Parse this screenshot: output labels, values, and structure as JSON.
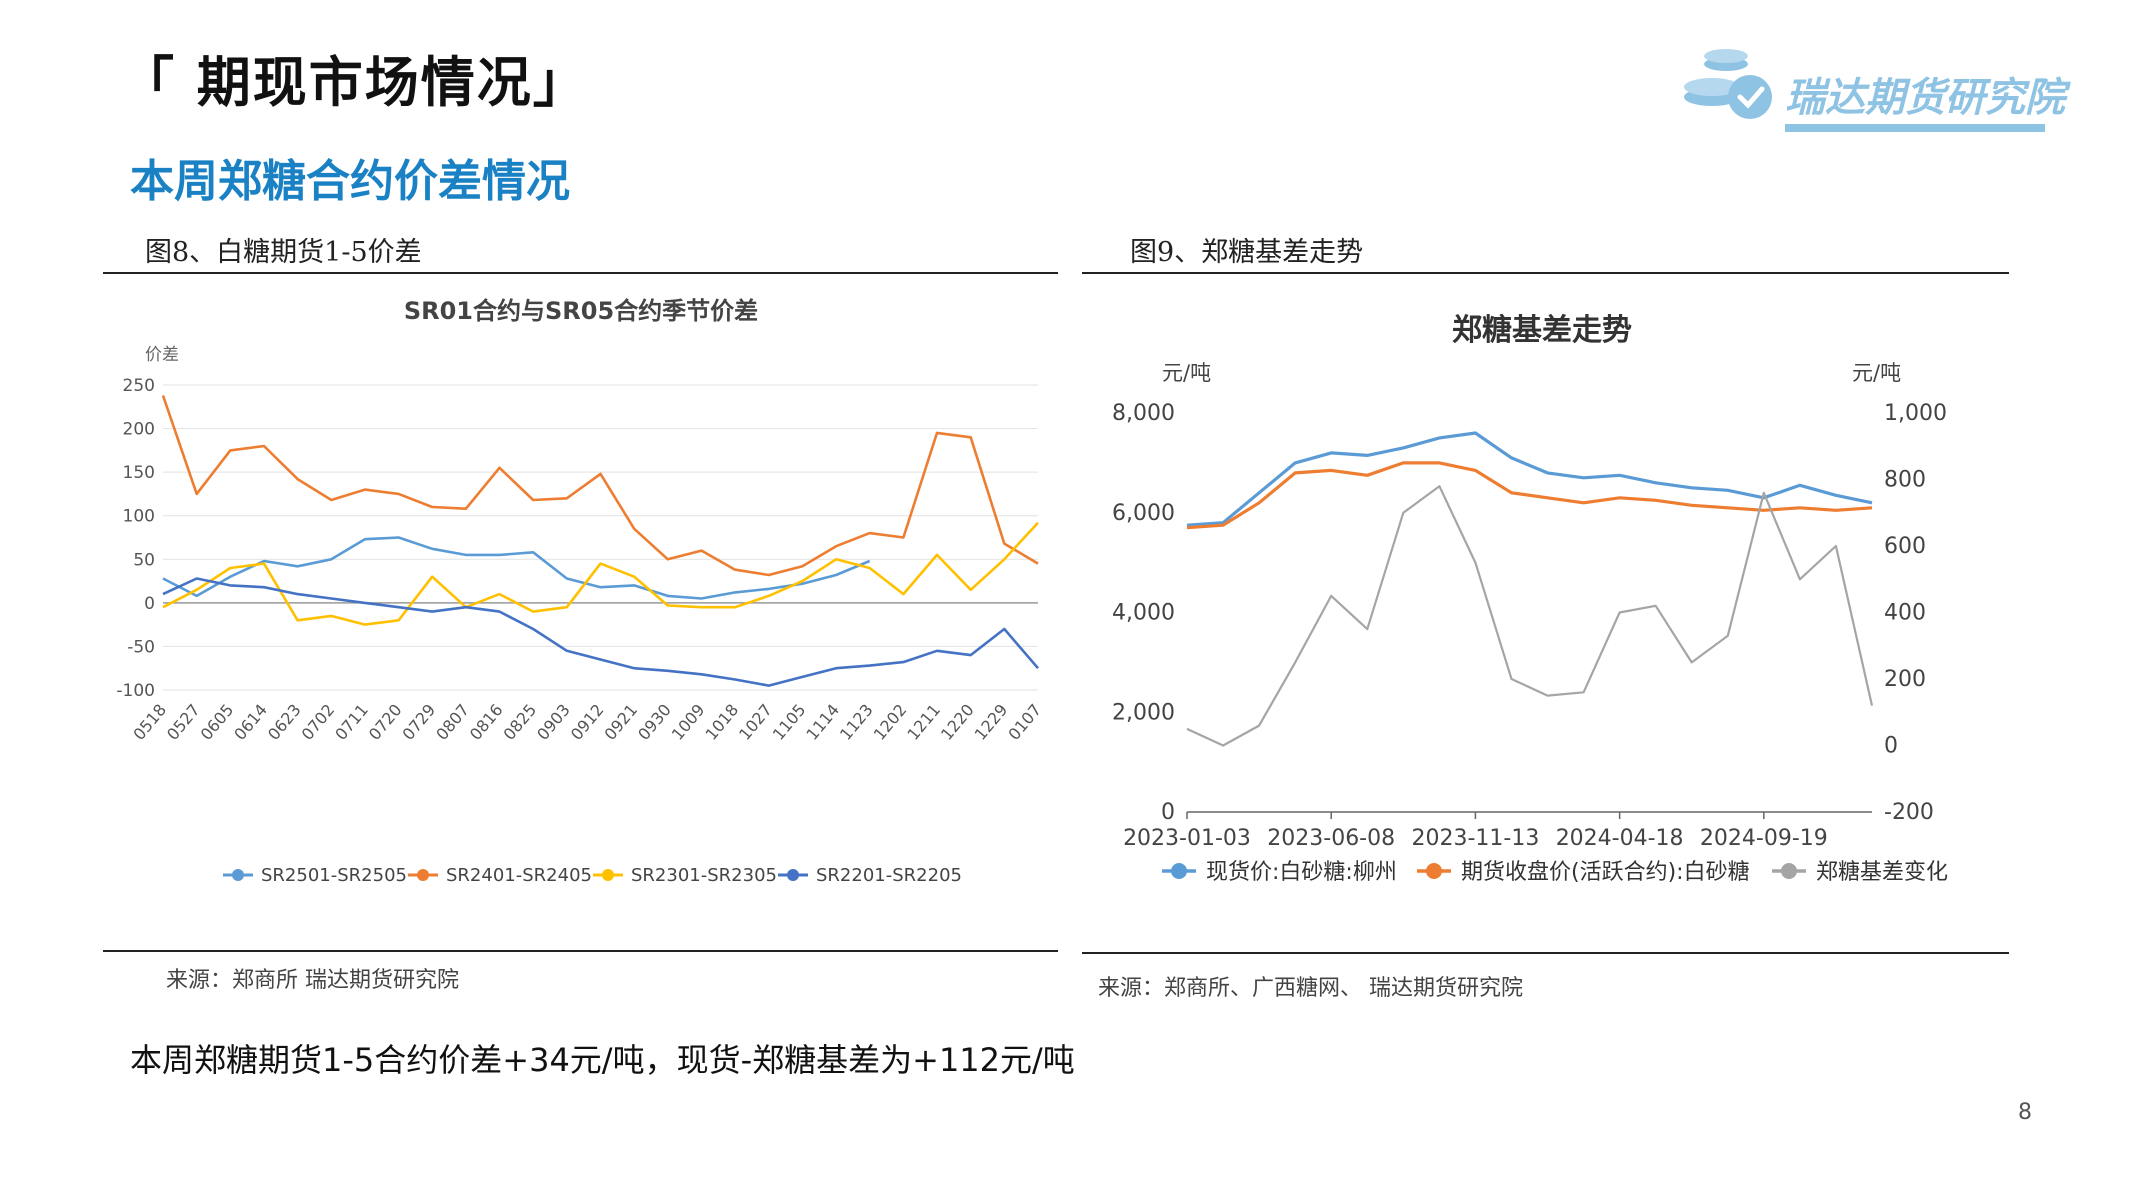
{
  "slide": {
    "title": "「 期现市场情况」",
    "section_title": "本周郑糖合约价差情况",
    "logo_text": "瑞达期货研究院",
    "page_number": "8",
    "summary": "本周郑糖期货1-5合约价差+34元/吨，现货-郑糖基差为+112元/吨"
  },
  "figures": {
    "fig8": {
      "caption": "图8、白糖期货1-5价差",
      "source": "来源：郑商所    瑞达期货研究院"
    },
    "fig9": {
      "caption": "图9、郑糖基差走势",
      "source": "来源：郑商所、广西糖网、   瑞达期货研究院"
    }
  },
  "colors": {
    "accent": "#1a82c4",
    "SR2501": "#5b9bd5",
    "SR2401": "#ed7d31",
    "SR2301": "#ffc000",
    "SR2201": "#4472c4",
    "spot": "#5b9bd5",
    "futures": "#ed7d31",
    "basis": "#a5a5a5"
  },
  "chart_data": [
    {
      "type": "line",
      "title": "SR01合约与SR05合约季节价差",
      "ylabel": "价差",
      "ylim": [
        -100,
        250
      ],
      "yticks": [
        250,
        200,
        150,
        100,
        50,
        0,
        -50,
        -100
      ],
      "grid": true,
      "legend_position": "bottom",
      "categories": [
        "0518",
        "0527",
        "0605",
        "0614",
        "0623",
        "0702",
        "0711",
        "0720",
        "0729",
        "0807",
        "0816",
        "0825",
        "0903",
        "0912",
        "0921",
        "0930",
        "1009",
        "1018",
        "1027",
        "1105",
        "1114",
        "1123",
        "1202",
        "1211",
        "1220",
        "1229",
        "0107"
      ],
      "series": [
        {
          "name": "SR2501-SR2505",
          "values": [
            28,
            8,
            30,
            48,
            42,
            50,
            73,
            75,
            62,
            55,
            55,
            58,
            28,
            18,
            20,
            8,
            5,
            12,
            16,
            22,
            32,
            48,
            null,
            null,
            null,
            null,
            null
          ]
        },
        {
          "name": "SR2401-SR2405",
          "values": [
            238,
            125,
            175,
            180,
            142,
            118,
            130,
            125,
            110,
            108,
            155,
            118,
            120,
            148,
            85,
            50,
            60,
            38,
            32,
            42,
            65,
            80,
            75,
            195,
            190,
            68,
            45
          ]
        },
        {
          "name": "SR2301-SR2305",
          "values": [
            -5,
            15,
            40,
            45,
            -20,
            -15,
            -25,
            -20,
            30,
            -5,
            10,
            -10,
            -5,
            45,
            30,
            -3,
            -5,
            -5,
            8,
            25,
            50,
            40,
            10,
            55,
            15,
            50,
            92
          ]
        },
        {
          "name": "SR2201-SR2205",
          "values": [
            10,
            28,
            20,
            18,
            10,
            5,
            0,
            -5,
            -10,
            -5,
            -10,
            -30,
            -55,
            -65,
            -75,
            -78,
            -82,
            -88,
            -95,
            -85,
            -75,
            -72,
            -68,
            -55,
            -60,
            -30,
            -75
          ]
        }
      ]
    },
    {
      "type": "line",
      "title": "郑糖基差走势",
      "ylabel": "元/吨",
      "y2label": "元/吨",
      "ylim": [
        0,
        8000
      ],
      "y2lim": [
        -200,
        1000
      ],
      "yticks": [
        "8,000",
        "6,000",
        "4,000",
        "2,000",
        "0"
      ],
      "y2ticks": [
        "1,000",
        "800",
        "600",
        "400",
        "200",
        "0",
        "-200"
      ],
      "grid": false,
      "legend_position": "bottom",
      "x": [
        "2023-01-03",
        "2023-02-20",
        "2023-04-10",
        "2023-05-29",
        "2023-06-08",
        "2023-07-17",
        "2023-08-28",
        "2023-09-20",
        "2023-11-13",
        "2023-12-20",
        "2024-02-01",
        "2024-03-15",
        "2024-04-18",
        "2024-05-30",
        "2024-07-10",
        "2024-08-20",
        "2024-09-19",
        "2024-10-30",
        "2024-12-10",
        "2025-01-10"
      ],
      "xticks": [
        "2023-01-03",
        "2023-06-08",
        "2023-11-13",
        "2024-04-18",
        "2024-09-19"
      ],
      "series": [
        {
          "name": "现货价:白砂糖:柳州",
          "axis": "left",
          "values": [
            5750,
            5800,
            6400,
            7000,
            7200,
            7150,
            7300,
            7500,
            7600,
            7100,
            6800,
            6700,
            6750,
            6600,
            6500,
            6450,
            6300,
            6550,
            6350,
            6200
          ]
        },
        {
          "name": "期货收盘价(活跃合约):白砂糖",
          "axis": "left",
          "values": [
            5700,
            5750,
            6200,
            6800,
            6850,
            6750,
            7000,
            7000,
            6850,
            6400,
            6300,
            6200,
            6300,
            6250,
            6150,
            6100,
            6050,
            6100,
            6050,
            6100
          ]
        },
        {
          "name": "郑糖基差变化",
          "axis": "right",
          "values": [
            50,
            0,
            60,
            250,
            450,
            350,
            700,
            780,
            550,
            200,
            150,
            160,
            400,
            420,
            250,
            330,
            760,
            500,
            600,
            120
          ]
        }
      ]
    }
  ]
}
